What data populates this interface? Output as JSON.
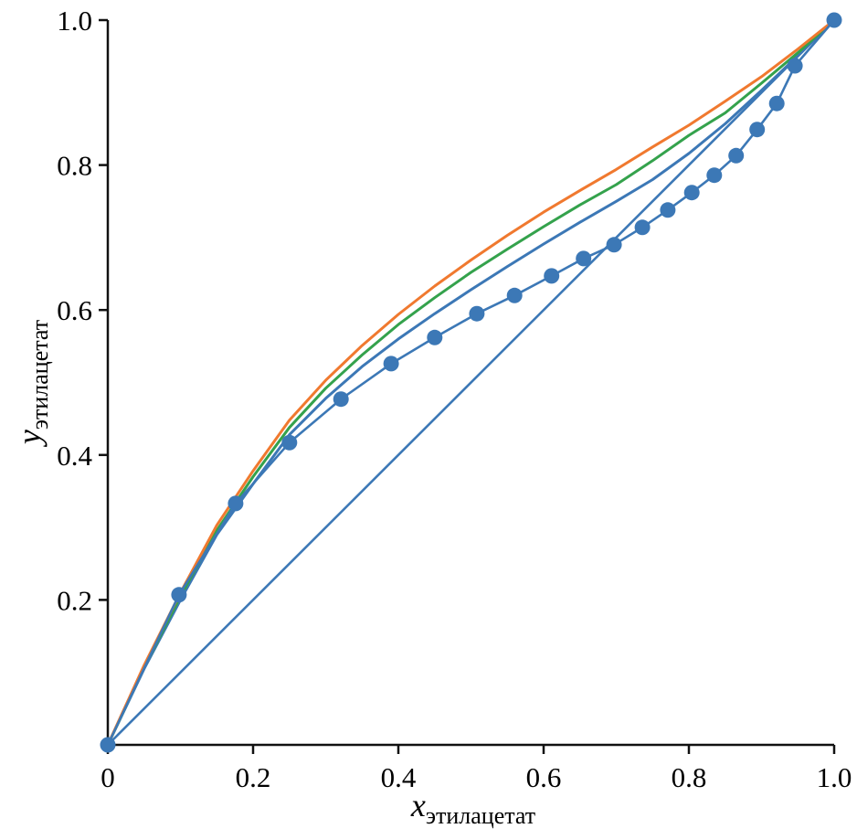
{
  "figure": {
    "background": "#ffffff"
  },
  "chart_data": {
    "type": "line",
    "title": "",
    "xlabel_main": "x",
    "xlabel_sub": "этилацетат",
    "ylabel_main": "y",
    "ylabel_sub": "этилацетат",
    "xlim": [
      0,
      1.0
    ],
    "ylim": [
      0,
      1.0
    ],
    "grid": false,
    "legend": "none",
    "axes_color": "#111111",
    "tick_length": 10,
    "x_ticks": {
      "values": [
        0,
        0.2,
        0.4,
        0.6,
        0.8,
        1.0
      ],
      "labels": [
        "0",
        "0.2",
        "0.4",
        "0.6",
        "0.8",
        "1.0"
      ]
    },
    "y_ticks": {
      "values": [
        0.2,
        0.4,
        0.6,
        0.8,
        1.0
      ],
      "labels": [
        "0.2",
        "0.4",
        "0.6",
        "0.8",
        "1.0"
      ]
    },
    "series": [
      {
        "name": "diagonal-reference",
        "color": "#3c78b6",
        "style": "line",
        "width": 2.6,
        "x": [
          0,
          1.0
        ],
        "y": [
          0,
          1.0
        ]
      },
      {
        "name": "model-curve-blue",
        "color": "#3c78b6",
        "style": "line",
        "width": 3,
        "x": [
          0,
          0.05,
          0.1,
          0.15,
          0.2,
          0.25,
          0.3,
          0.35,
          0.4,
          0.45,
          0.5,
          0.55,
          0.6,
          0.65,
          0.7,
          0.75,
          0.8,
          0.85,
          0.9,
          0.95,
          1.0
        ],
        "y": [
          0,
          0.105,
          0.2,
          0.29,
          0.36,
          0.428,
          0.478,
          0.522,
          0.56,
          0.595,
          0.628,
          0.66,
          0.691,
          0.721,
          0.75,
          0.78,
          0.816,
          0.857,
          0.903,
          0.951,
          1.0
        ]
      },
      {
        "name": "model-curve-green",
        "color": "#34a24c",
        "style": "line",
        "width": 3,
        "x": [
          0,
          0.05,
          0.1,
          0.15,
          0.2,
          0.25,
          0.3,
          0.35,
          0.4,
          0.45,
          0.5,
          0.55,
          0.6,
          0.65,
          0.7,
          0.75,
          0.8,
          0.85,
          0.9,
          0.95,
          1.0
        ],
        "y": [
          0,
          0.107,
          0.205,
          0.296,
          0.37,
          0.438,
          0.492,
          0.538,
          0.58,
          0.617,
          0.652,
          0.684,
          0.715,
          0.745,
          0.773,
          0.806,
          0.841,
          0.872,
          0.913,
          0.955,
          1.0
        ]
      },
      {
        "name": "model-curve-orange",
        "color": "#f0792f",
        "style": "line",
        "width": 3,
        "x": [
          0,
          0.05,
          0.1,
          0.15,
          0.2,
          0.25,
          0.3,
          0.35,
          0.4,
          0.45,
          0.5,
          0.55,
          0.6,
          0.65,
          0.7,
          0.75,
          0.8,
          0.85,
          0.9,
          0.95,
          1.0
        ],
        "y": [
          0,
          0.11,
          0.21,
          0.303,
          0.378,
          0.448,
          0.503,
          0.551,
          0.594,
          0.633,
          0.669,
          0.703,
          0.735,
          0.765,
          0.794,
          0.825,
          0.855,
          0.888,
          0.922,
          0.96,
          1.0
        ]
      },
      {
        "name": "experimental-data",
        "color": "#3c78b6",
        "style": "line+markers",
        "width": 2.6,
        "marker_radius": 8.5,
        "x": [
          0,
          0.098,
          0.176,
          0.25,
          0.321,
          0.39,
          0.45,
          0.508,
          0.56,
          0.611,
          0.655,
          0.697,
          0.736,
          0.771,
          0.804,
          0.835,
          0.865,
          0.894,
          0.921,
          0.946,
          1.0
        ],
        "y": [
          0,
          0.207,
          0.333,
          0.417,
          0.477,
          0.526,
          0.562,
          0.595,
          0.62,
          0.647,
          0.671,
          0.69,
          0.714,
          0.738,
          0.762,
          0.786,
          0.813,
          0.849,
          0.885,
          0.937,
          1.0
        ]
      }
    ]
  }
}
